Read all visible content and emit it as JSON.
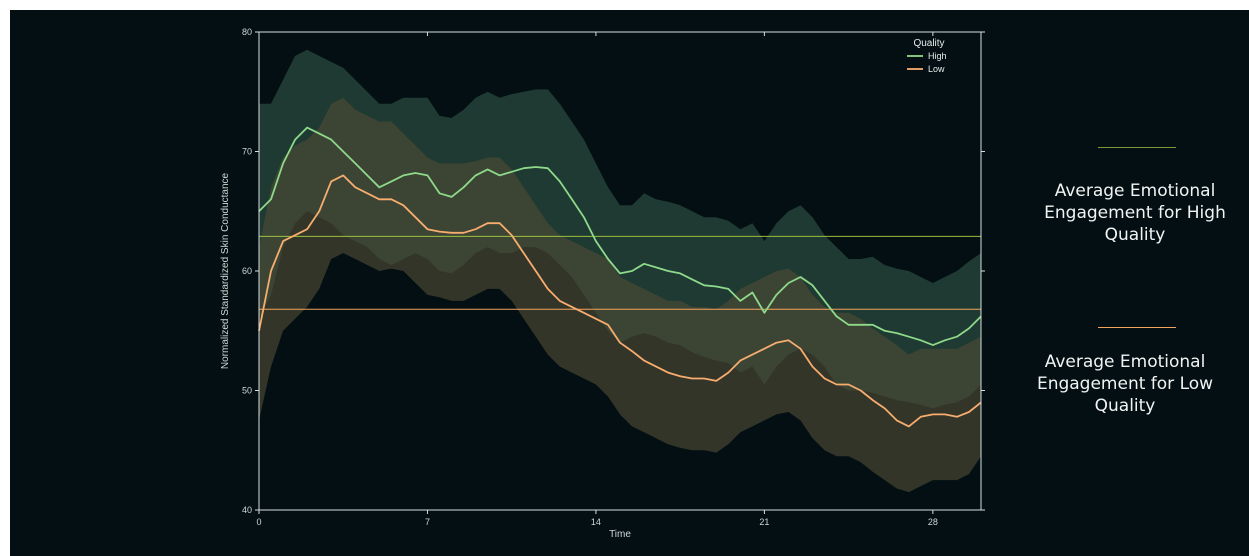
{
  "chart_data": {
    "type": "line",
    "xlabel": "Time",
    "ylabel": "Normalized Standardized Skin Conductance",
    "xlim": [
      0,
      30
    ],
    "ylim": [
      40,
      80
    ],
    "xticks": [
      0,
      7,
      14,
      21,
      28
    ],
    "yticks": [
      40,
      50,
      60,
      70,
      80
    ],
    "grid": false,
    "legend": {
      "title": "Quality",
      "position": "top-right"
    },
    "x": [
      0,
      0.5,
      1,
      1.5,
      2,
      2.5,
      3,
      3.5,
      4,
      4.5,
      5,
      5.5,
      6,
      6.5,
      7,
      7.5,
      8,
      8.5,
      9,
      9.5,
      10,
      10.5,
      11,
      11.5,
      12,
      12.5,
      13,
      13.5,
      14,
      14.5,
      15,
      15.5,
      16,
      16.5,
      17,
      17.5,
      18,
      18.5,
      19,
      19.5,
      20,
      20.5,
      21,
      21.5,
      22,
      22.5,
      23,
      23.5,
      24,
      24.5,
      25,
      25.5,
      26,
      26.5,
      27,
      27.5,
      28,
      28.5,
      29,
      29.5,
      30
    ],
    "series": [
      {
        "name": "High",
        "color": "#8ed98a",
        "band_color": "#2a4a3e",
        "mean_line": 62.9,
        "values": [
          65,
          66,
          69,
          71,
          72,
          71.5,
          71,
          70,
          69,
          68,
          67,
          67.5,
          68,
          68.2,
          68,
          66.5,
          66.2,
          67,
          68,
          68.5,
          68,
          68.3,
          68.6,
          68.7,
          68.6,
          67.5,
          66,
          64.5,
          62.5,
          61,
          59.8,
          60,
          60.6,
          60.3,
          60,
          59.8,
          59.3,
          58.8,
          58.7,
          58.5,
          57.5,
          58.2,
          56.5,
          58,
          59,
          59.5,
          58.8,
          57.5,
          56.2,
          55.5,
          55.5,
          55.5,
          55,
          54.8,
          54.5,
          54.2,
          53.8,
          54.2,
          54.5,
          55.2,
          56.2
        ],
        "lower": [
          56,
          58,
          62,
          64,
          65,
          64.5,
          64,
          63,
          62.5,
          62,
          61,
          60.5,
          61,
          61.5,
          61,
          60,
          59.8,
          60.5,
          61.5,
          62,
          61.5,
          61.5,
          62,
          62,
          61.5,
          60.5,
          59.5,
          58,
          56.5,
          55,
          54,
          54.5,
          54.8,
          54.5,
          54,
          53.8,
          53.2,
          52.8,
          52.5,
          52.3,
          51.5,
          52,
          50.5,
          52,
          53,
          53.5,
          53,
          52,
          50.5,
          50,
          50,
          49.8,
          49.5,
          49.2,
          49,
          48.8,
          48.5,
          48.8,
          49,
          49.5,
          50.5
        ],
        "upper": [
          74,
          74,
          76,
          78,
          78.5,
          78,
          77.5,
          77,
          76,
          75,
          74,
          74,
          74.5,
          74.5,
          74.5,
          73,
          72.8,
          73.5,
          74.5,
          75,
          74.5,
          74.8,
          75,
          75.2,
          75.2,
          74,
          72.5,
          71,
          69,
          67,
          65.5,
          65.5,
          66.5,
          66,
          65.8,
          65.5,
          65,
          64.5,
          64.5,
          64.2,
          63.5,
          64,
          62.5,
          64,
          65,
          65.5,
          64.5,
          63,
          62,
          61,
          61,
          61.2,
          60.5,
          60.2,
          60,
          59.5,
          59,
          59.5,
          60,
          60.8,
          61.5
        ]
      },
      {
        "name": "Low",
        "color": "#f7ad6e",
        "band_color": "#4d4a36",
        "mean_line": 56.8,
        "values": [
          55,
          60,
          62.5,
          63,
          63.5,
          65,
          67.5,
          68,
          67,
          66.5,
          66,
          66,
          65.5,
          64.5,
          63.5,
          63.3,
          63.2,
          63.2,
          63.5,
          64,
          64,
          63,
          61.5,
          60,
          58.5,
          57.5,
          57,
          56.5,
          56,
          55.5,
          54,
          53.3,
          52.5,
          52,
          51.5,
          51.2,
          51,
          51,
          50.8,
          51.5,
          52.5,
          53,
          53.5,
          54,
          54.2,
          53.5,
          52,
          51,
          50.5,
          50.5,
          50,
          49.2,
          48.5,
          47.5,
          47,
          47.8,
          48,
          48,
          47.8,
          48.2,
          49
        ],
        "lower": [
          47.5,
          52,
          55,
          56,
          57,
          58.5,
          61,
          61.5,
          61,
          60.5,
          60,
          60.2,
          60,
          59,
          58,
          57.8,
          57.5,
          57.5,
          58,
          58.5,
          58.5,
          57.5,
          56,
          54.5,
          53,
          52,
          51.5,
          51,
          50.5,
          49.5,
          48,
          47,
          46.5,
          46,
          45.5,
          45.2,
          45,
          45,
          44.8,
          45.5,
          46.5,
          47,
          47.5,
          48,
          48.2,
          47.5,
          46,
          45,
          44.5,
          44.5,
          44,
          43.2,
          42.5,
          41.8,
          41.5,
          42,
          42.5,
          42.5,
          42.5,
          43,
          44.5
        ],
        "upper": [
          62,
          67,
          69.5,
          70.5,
          71,
          72,
          74,
          74.5,
          73.5,
          73,
          72.5,
          72.5,
          71.5,
          70.5,
          69.5,
          69,
          69,
          69,
          69.2,
          69.5,
          69.5,
          68.5,
          67,
          65.5,
          64,
          63,
          62.5,
          62,
          61.5,
          61,
          59.5,
          59,
          58.5,
          58,
          57.5,
          57.5,
          57,
          57,
          56.8,
          57.5,
          58.5,
          59,
          59.5,
          60,
          60.2,
          59.5,
          58,
          57,
          56.5,
          56.5,
          56,
          55.2,
          54.5,
          53.8,
          53,
          53.5,
          53.5,
          53.5,
          53.5,
          54,
          54.5
        ]
      }
    ]
  },
  "annotations": [
    {
      "text": "Average Emotional Engagement for High Quality",
      "color": "#7a9a3a"
    },
    {
      "text": "Average Emotional Engagement for Low Quality",
      "color": "#f2a35c"
    }
  ]
}
